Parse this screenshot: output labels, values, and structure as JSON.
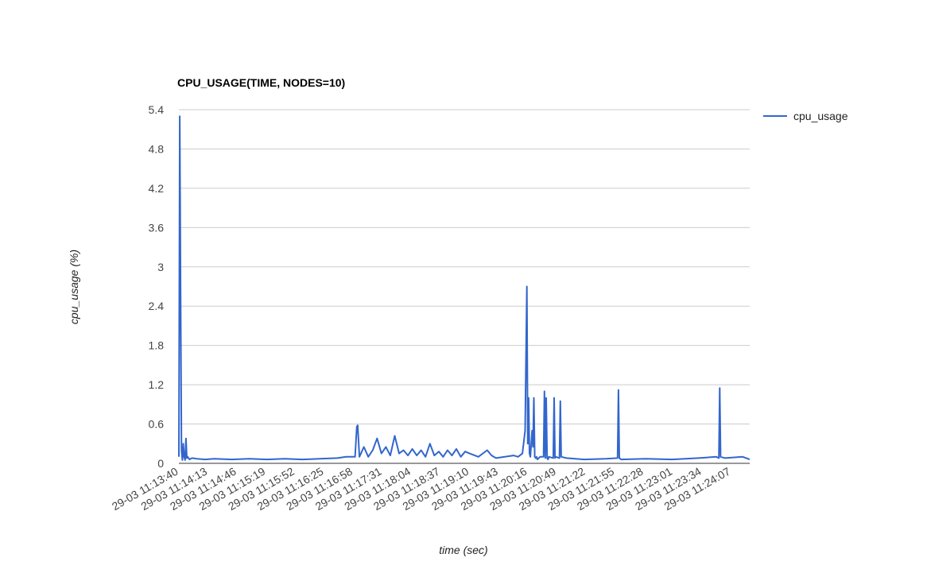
{
  "colors": {
    "series": "#3366cc",
    "grid": "#cccccc",
    "text": "#444444"
  },
  "chart_data": {
    "type": "line",
    "title": "CPU_USAGE(TIME, NODES=10)",
    "xlabel": "time (sec)",
    "ylabel": "cpu_usage (%)",
    "ylim": [
      0,
      5.4
    ],
    "yticks": [
      "0",
      "0.6",
      "1.2",
      "1.8",
      "2.4",
      "3",
      "3.6",
      "4.2",
      "4.8",
      "5.4"
    ],
    "xticks": [
      "29-03 11:13:40",
      "29-03 11:14:13",
      "29-03 11:14:46",
      "29-03 11:15:19",
      "29-03 11:15:52",
      "29-03 11:16:25",
      "29-03 11:16:58",
      "29-03 11:17:31",
      "29-03 11:18:04",
      "29-03 11:18:37",
      "29-03 11:19:10",
      "29-03 11:19:43",
      "29-03 11:20:16",
      "29-03 11:20:49",
      "29-03 11:21:22",
      "29-03 11:21:55",
      "29-03 11:22:28",
      "29-03 11:23:01",
      "29-03 11:23:34",
      "29-03 11:24:07"
    ],
    "xlim": [
      "29-03 11:13:40",
      "29-03 11:24:28"
    ],
    "grid": true,
    "legend_position": "right",
    "series": [
      {
        "name": "cpu_usage",
        "x": [
          "29-03 11:13:40",
          "29-03 11:13:41",
          "29-03 11:13:42",
          "29-03 11:13:43",
          "29-03 11:13:44",
          "29-03 11:13:45",
          "29-03 11:13:46",
          "29-03 11:13:47",
          "29-03 11:13:48",
          "29-03 11:13:49",
          "29-03 11:13:50",
          "29-03 11:13:52",
          "29-03 11:13:55",
          "29-03 11:14:00",
          "29-03 11:14:10",
          "29-03 11:14:20",
          "29-03 11:14:40",
          "29-03 11:15:00",
          "29-03 11:15:20",
          "29-03 11:15:40",
          "29-03 11:16:00",
          "29-03 11:16:20",
          "29-03 11:16:40",
          "29-03 11:16:50",
          "29-03 11:17:00",
          "29-03 11:17:02",
          "29-03 11:17:03",
          "29-03 11:17:05",
          "29-03 11:17:10",
          "29-03 11:17:15",
          "29-03 11:17:20",
          "29-03 11:17:25",
          "29-03 11:17:30",
          "29-03 11:17:35",
          "29-03 11:17:40",
          "29-03 11:17:45",
          "29-03 11:17:50",
          "29-03 11:17:55",
          "29-03 11:18:00",
          "29-03 11:18:05",
          "29-03 11:18:10",
          "29-03 11:18:15",
          "29-03 11:18:20",
          "29-03 11:18:25",
          "29-03 11:18:30",
          "29-03 11:18:35",
          "29-03 11:18:40",
          "29-03 11:18:45",
          "29-03 11:18:50",
          "29-03 11:18:55",
          "29-03 11:19:00",
          "29-03 11:19:05",
          "29-03 11:19:10",
          "29-03 11:19:20",
          "29-03 11:19:30",
          "29-03 11:19:35",
          "29-03 11:19:40",
          "29-03 11:19:50",
          "29-03 11:20:00",
          "29-03 11:20:05",
          "29-03 11:20:10",
          "29-03 11:20:13",
          "29-03 11:20:15",
          "29-03 11:20:16",
          "29-03 11:20:17",
          "29-03 11:20:18",
          "29-03 11:20:19",
          "29-03 11:20:21",
          "29-03 11:20:22",
          "29-03 11:20:23",
          "29-03 11:20:24",
          "29-03 11:20:25",
          "29-03 11:20:26",
          "29-03 11:20:27",
          "29-03 11:20:30",
          "29-03 11:20:34",
          "29-03 11:20:35",
          "29-03 11:20:36",
          "29-03 11:20:37",
          "29-03 11:20:38",
          "29-03 11:20:39",
          "29-03 11:20:40",
          "29-03 11:20:45",
          "29-03 11:20:46",
          "29-03 11:20:47",
          "29-03 11:20:48",
          "29-03 11:20:52",
          "29-03 11:20:53",
          "29-03 11:20:54",
          "29-03 11:21:00",
          "29-03 11:21:20",
          "29-03 11:21:45",
          "29-03 11:21:58",
          "29-03 11:21:59",
          "29-03 11:22:00",
          "29-03 11:22:02",
          "29-03 11:22:30",
          "29-03 11:23:00",
          "29-03 11:23:30",
          "29-03 11:23:50",
          "29-03 11:23:53",
          "29-03 11:23:54",
          "29-03 11:23:55",
          "29-03 11:24:00",
          "29-03 11:24:20",
          "29-03 11:24:28"
        ],
        "values": [
          0.1,
          5.3,
          2.5,
          0.2,
          0.05,
          0.3,
          0.1,
          0.05,
          0.38,
          0.08,
          0.1,
          0.06,
          0.08,
          0.07,
          0.06,
          0.07,
          0.06,
          0.07,
          0.06,
          0.07,
          0.06,
          0.07,
          0.08,
          0.1,
          0.1,
          0.56,
          0.58,
          0.1,
          0.25,
          0.1,
          0.2,
          0.38,
          0.15,
          0.25,
          0.12,
          0.42,
          0.15,
          0.2,
          0.12,
          0.22,
          0.12,
          0.2,
          0.1,
          0.3,
          0.12,
          0.18,
          0.1,
          0.2,
          0.12,
          0.22,
          0.1,
          0.18,
          0.15,
          0.1,
          0.2,
          0.12,
          0.08,
          0.1,
          0.12,
          0.1,
          0.15,
          0.5,
          2.7,
          0.3,
          1.0,
          0.15,
          0.1,
          0.5,
          0.25,
          1.0,
          0.1,
          0.08,
          0.1,
          0.06,
          0.1,
          0.1,
          1.1,
          0.08,
          1.0,
          0.08,
          0.06,
          0.1,
          0.08,
          1.0,
          0.08,
          0.1,
          0.08,
          0.95,
          0.1,
          0.08,
          0.06,
          0.07,
          0.08,
          1.12,
          0.08,
          0.06,
          0.07,
          0.06,
          0.08,
          0.1,
          0.08,
          1.15,
          0.1,
          0.08,
          0.1,
          0.06
        ]
      }
    ]
  }
}
